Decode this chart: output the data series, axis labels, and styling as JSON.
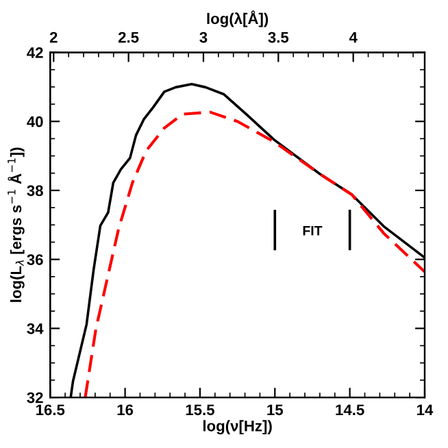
{
  "chart_data": {
    "type": "line",
    "xlabel": "log(ν[Hz])",
    "ylabel": "log(L$_{λ}$ [ergs s$^{−1}$ Å$^{−1}$])",
    "x2label": "log(λ[Å])",
    "xlim": [
      16.5,
      14
    ],
    "xticks": [
      16.5,
      16,
      15.5,
      15,
      14.5,
      14
    ],
    "ylim": [
      32,
      42
    ],
    "yticks": [
      32,
      34,
      36,
      38,
      40,
      42
    ],
    "x2lim": [
      1.977,
      4.477
    ],
    "x2ticks": [
      2,
      2.5,
      3,
      3.5,
      4
    ],
    "series": [
      {
        "color": "#000000",
        "line_style": "solid",
        "x": [
          16.363,
          16.348,
          16.257,
          16.21,
          16.165,
          16.113,
          16.079,
          16.028,
          15.967,
          15.927,
          15.875,
          15.814,
          15.738,
          15.662,
          15.555,
          15.463,
          15.342,
          15.189,
          15.006,
          14.701,
          14.487,
          14.274,
          14.015,
          14.0
        ],
        "values": [
          32,
          32.46,
          34.12,
          35.7,
          36.98,
          37.36,
          38.22,
          38.61,
          38.94,
          39.6,
          40.06,
          40.4,
          40.86,
          40.99,
          41.08,
          40.99,
          40.79,
          40.2,
          39.47,
          38.48,
          37.88,
          36.96,
          36.1,
          36.05
        ]
      },
      {
        "color": "#ff0000",
        "line_style": "dashed",
        "x": [
          16.266,
          16.195,
          16.119,
          16.043,
          15.951,
          15.86,
          15.738,
          15.616,
          15.433,
          15.25,
          15.006,
          14.701,
          14.487,
          14.274,
          14.0
        ],
        "values": [
          32,
          33.98,
          35.44,
          36.89,
          38.22,
          39.14,
          39.81,
          40.21,
          40.27,
          40.0,
          39.41,
          38.48,
          37.88,
          36.76,
          35.64
        ]
      },
      {
        "color": "#000000",
        "line_style": "solid",
        "x": [
          15,
          15
        ],
        "values": [
          36.3,
          37.4
        ]
      },
      {
        "color": "#000000",
        "line_style": "solid",
        "x": [
          14.5,
          14.5
        ],
        "values": [
          36.3,
          37.4
        ]
      }
    ],
    "annotations": [
      "FIT"
    ],
    "grid": false,
    "legend": false,
    "marker": "none"
  }
}
